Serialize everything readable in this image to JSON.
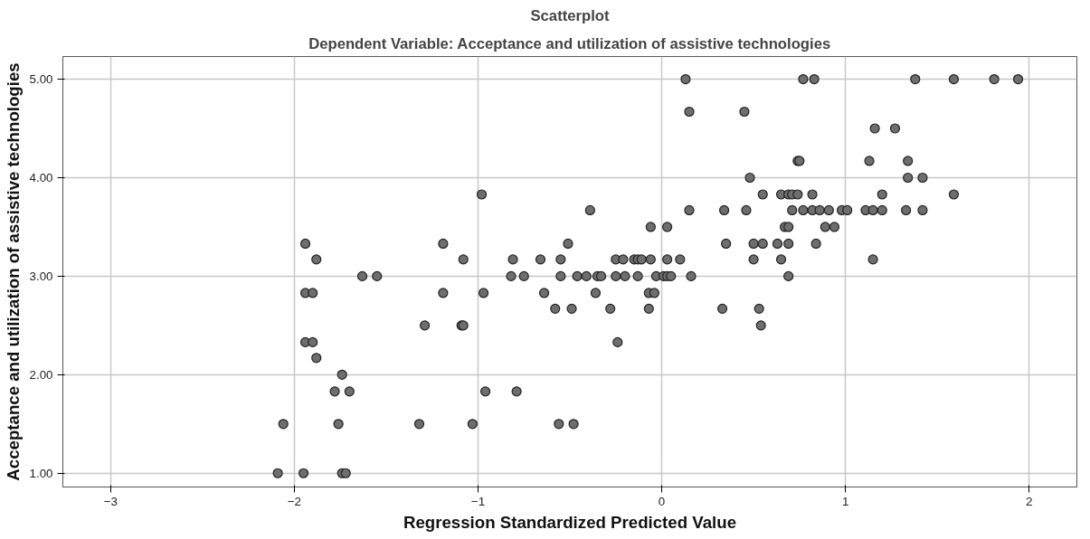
{
  "chart_data": {
    "type": "scatter",
    "title": "Scatterplot",
    "subtitle": "Dependent Variable: Acceptance and utilization of assistive technologies",
    "xlabel": "Regression Standardized Predicted Value",
    "ylabel": "Acceptance and utilization of assistive technologies",
    "xlim": [
      -3.26,
      2.26
    ],
    "ylim": [
      0.86,
      5.23
    ],
    "xticks": [
      -3,
      -2,
      -1,
      0,
      1,
      2
    ],
    "yticks": [
      {
        "value": 1,
        "label": "1.00"
      },
      {
        "value": 2,
        "label": "2.00"
      },
      {
        "value": 3,
        "label": "3.00"
      },
      {
        "value": 4,
        "label": "4.00"
      },
      {
        "value": 5,
        "label": "5.00"
      }
    ],
    "grid": true,
    "marker": "circle",
    "series": [
      {
        "color": "#6e6e6e",
        "x": [
          -2.09,
          -1.95,
          -1.74,
          -1.72,
          -2.06,
          -1.76,
          -1.32,
          -1.03,
          -0.56,
          -0.48,
          -1.78,
          -1.7,
          -0.96,
          -0.79,
          -1.74,
          -1.88,
          -1.94,
          -1.9,
          -0.24,
          -1.29,
          -1.09,
          -1.08,
          0.54,
          -0.58,
          -0.49,
          -0.28,
          -0.07,
          0.33,
          0.53,
          -1.94,
          -1.9,
          -1.19,
          -0.97,
          -0.64,
          -0.36,
          -0.07,
          -0.04,
          -1.63,
          -1.55,
          -0.82,
          -0.75,
          -0.55,
          -0.46,
          -0.41,
          -0.35,
          -0.33,
          -0.25,
          -0.2,
          -0.13,
          -0.03,
          0.01,
          0.03,
          0.05,
          0.16,
          0.69,
          -1.88,
          -1.08,
          -0.81,
          -0.66,
          -0.55,
          -0.25,
          -0.21,
          -0.15,
          -0.13,
          -0.11,
          -0.06,
          0.03,
          0.1,
          0.5,
          0.65,
          1.15,
          -1.94,
          -1.19,
          -0.51,
          0.35,
          0.5,
          0.55,
          0.63,
          0.69,
          0.84,
          -0.06,
          0.03,
          0.67,
          0.69,
          0.89,
          0.94,
          -0.39,
          0.15,
          0.34,
          0.46,
          0.71,
          0.77,
          0.82,
          0.86,
          0.91,
          0.98,
          1.01,
          1.11,
          1.15,
          1.2,
          1.33,
          1.42,
          -0.98,
          0.55,
          0.65,
          0.69,
          0.71,
          0.74,
          0.82,
          1.2,
          1.59,
          0.48,
          1.34,
          1.42,
          0.74,
          0.75,
          1.13,
          1.34,
          1.16,
          1.27,
          0.15,
          0.45,
          0.13,
          0.77,
          0.83,
          1.38,
          1.59,
          1.81,
          1.94
        ],
        "values": [
          1,
          1,
          1,
          1,
          1.5,
          1.5,
          1.5,
          1.5,
          1.5,
          1.5,
          1.83,
          1.83,
          1.83,
          1.83,
          2,
          2.17,
          2.33,
          2.33,
          2.33,
          2.5,
          2.5,
          2.5,
          2.5,
          2.67,
          2.67,
          2.67,
          2.67,
          2.67,
          2.67,
          2.83,
          2.83,
          2.83,
          2.83,
          2.83,
          2.83,
          2.83,
          2.83,
          3,
          3,
          3,
          3,
          3,
          3,
          3,
          3,
          3,
          3,
          3,
          3,
          3,
          3,
          3,
          3,
          3,
          3,
          3.17,
          3.17,
          3.17,
          3.17,
          3.17,
          3.17,
          3.17,
          3.17,
          3.17,
          3.17,
          3.17,
          3.17,
          3.17,
          3.17,
          3.17,
          3.17,
          3.33,
          3.33,
          3.33,
          3.33,
          3.33,
          3.33,
          3.33,
          3.33,
          3.33,
          3.5,
          3.5,
          3.5,
          3.5,
          3.5,
          3.5,
          3.67,
          3.67,
          3.67,
          3.67,
          3.67,
          3.67,
          3.67,
          3.67,
          3.67,
          3.67,
          3.67,
          3.67,
          3.67,
          3.67,
          3.67,
          3.67,
          3.83,
          3.83,
          3.83,
          3.83,
          3.83,
          3.83,
          3.83,
          3.83,
          3.83,
          4,
          4,
          4,
          4.17,
          4.17,
          4.17,
          4.17,
          4.5,
          4.5,
          4.67,
          4.67,
          5,
          5,
          5,
          5,
          5,
          5,
          5
        ]
      }
    ]
  }
}
